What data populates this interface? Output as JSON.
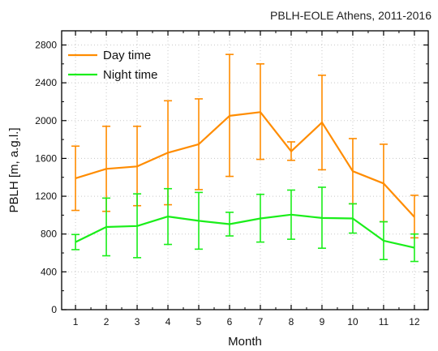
{
  "chart_data": {
    "type": "line",
    "title": "PBLH-EOLE Athens, 2011-2016",
    "xlabel": "Month",
    "ylabel": "PBLH [m, a.g.l.]",
    "x": [
      1,
      2,
      3,
      4,
      5,
      6,
      7,
      8,
      9,
      10,
      11,
      12
    ],
    "xlim": [
      0.55,
      12.45
    ],
    "ylim": [
      0,
      2950
    ],
    "xticks": [
      "1",
      "2",
      "3",
      "4",
      "5",
      "6",
      "7",
      "8",
      "9",
      "10",
      "11",
      "12"
    ],
    "yticks": [
      0,
      400,
      800,
      1200,
      1600,
      2000,
      2400,
      2800
    ],
    "grid": true,
    "legend": "top-left",
    "series": [
      {
        "name": "Day time",
        "color": "#ff8c00",
        "values": [
          1390,
          1490,
          1515,
          1660,
          1750,
          2050,
          2090,
          1675,
          1980,
          1465,
          1335,
          980
        ],
        "err_low": [
          1050,
          1040,
          1100,
          1110,
          1270,
          1410,
          1590,
          1580,
          1480,
          1120,
          930,
          760
        ],
        "err_high": [
          1730,
          1940,
          1940,
          2210,
          2230,
          2700,
          2600,
          1775,
          2480,
          1810,
          1750,
          1210
        ]
      },
      {
        "name": "Night time",
        "color": "#1aee1a",
        "values": [
          715,
          875,
          885,
          985,
          940,
          905,
          965,
          1005,
          970,
          965,
          730,
          655
        ],
        "err_low": [
          635,
          570,
          550,
          690,
          640,
          780,
          715,
          745,
          650,
          810,
          530,
          510
        ],
        "err_high": [
          795,
          1180,
          1225,
          1280,
          1240,
          1030,
          1220,
          1265,
          1295,
          1120,
          930,
          800
        ]
      }
    ]
  }
}
